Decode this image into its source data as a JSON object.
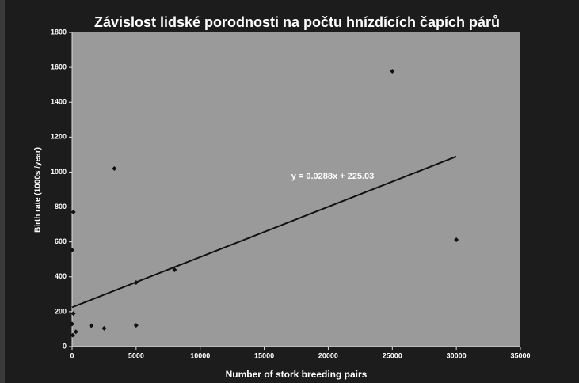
{
  "chart_data": {
    "type": "scatter",
    "title": "Závislost lidské porodnosti na počtu hnízdících čapích párů",
    "xlabel": "Number of stork breeding pairs",
    "ylabel": "Birth rate (1000s /year)",
    "annotation": "y = 0.0288x + 225.03",
    "x": [
      25000,
      30000,
      3300,
      0,
      100,
      8000,
      5000,
      5000,
      1500,
      2500,
      100,
      300,
      50,
      0
    ],
    "y": [
      1578,
      612,
      1020,
      553,
      771,
      440,
      367,
      122,
      120,
      105,
      190,
      85,
      65,
      130
    ],
    "color": "#111111",
    "trendline": {
      "x": [
        0,
        30000
      ],
      "y": [
        225.03,
        1089
      ],
      "color": "#111111"
    },
    "xlim": [
      0,
      35000
    ],
    "xticks": [
      0,
      5000,
      10000,
      15000,
      20000,
      25000,
      30000,
      35000
    ],
    "ylim": [
      0,
      1800
    ],
    "yticks": [
      0,
      200,
      400,
      600,
      800,
      1000,
      1200,
      1400,
      1600,
      1800
    ],
    "grid": false
  }
}
